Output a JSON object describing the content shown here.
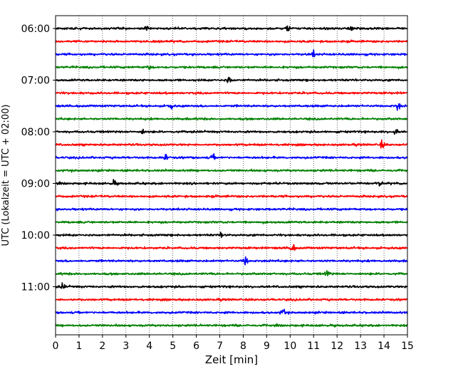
{
  "chart_data": {
    "type": "line",
    "title": "",
    "xlabel": "Zeit  [min]",
    "ylabel": "UTC (Lokalzeit = UTC + 02:00)",
    "xlim": [
      0,
      15
    ],
    "x_ticks": [
      "0",
      "1",
      "2",
      "3",
      "4",
      "5",
      "6",
      "7",
      "8",
      "9",
      "10",
      "11",
      "12",
      "13",
      "14",
      "15"
    ],
    "y_tick_labels": [
      "06:00",
      "07:00",
      "08:00",
      "09:00",
      "10:00",
      "11:00"
    ],
    "grid_x": true,
    "trace_interval_min": 15,
    "first_trace": "06:00",
    "trace_count": 24,
    "colors": [
      "#000000",
      "#ff0000",
      "#0000ff",
      "#008000"
    ],
    "events": [
      {
        "trace": 0,
        "t": 3.9,
        "amp": 0.9
      },
      {
        "trace": 0,
        "t": 9.9,
        "amp": 1.3
      },
      {
        "trace": 0,
        "t": 12.6,
        "amp": 0.9
      },
      {
        "trace": 2,
        "t": 11.0,
        "amp": 0.9
      },
      {
        "trace": 3,
        "t": 4.0,
        "amp": 0.6
      },
      {
        "trace": 4,
        "t": 7.4,
        "amp": 1.5
      },
      {
        "trace": 6,
        "t": 4.9,
        "amp": 0.8
      },
      {
        "trace": 6,
        "t": 14.6,
        "amp": 1.3
      },
      {
        "trace": 8,
        "t": 3.7,
        "amp": 0.9
      },
      {
        "trace": 8,
        "t": 14.5,
        "amp": 1.0
      },
      {
        "trace": 9,
        "t": 13.9,
        "amp": 1.3
      },
      {
        "trace": 10,
        "t": 4.7,
        "amp": 0.9
      },
      {
        "trace": 10,
        "t": 6.7,
        "amp": 0.8
      },
      {
        "trace": 12,
        "t": 2.5,
        "amp": 0.8
      },
      {
        "trace": 12,
        "t": 13.8,
        "amp": 1.2
      },
      {
        "trace": 16,
        "t": 7.1,
        "amp": 0.8
      },
      {
        "trace": 17,
        "t": 10.1,
        "amp": 1.4
      },
      {
        "trace": 18,
        "t": 8.1,
        "amp": 1.5
      },
      {
        "trace": 19,
        "t": 11.6,
        "amp": 1.0
      },
      {
        "trace": 20,
        "t": 0.3,
        "amp": 0.8
      },
      {
        "trace": 22,
        "t": 9.7,
        "amp": 1.0
      }
    ]
  }
}
